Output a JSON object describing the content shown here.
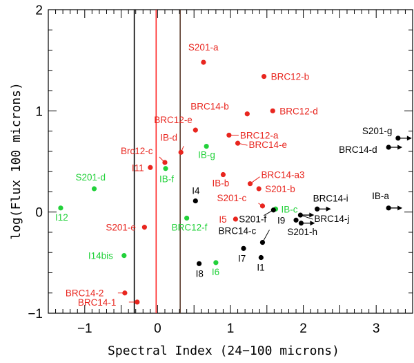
{
  "chart_data": {
    "type": "scatter",
    "title": "",
    "xlabel": "Spectral Index (24−100 microns)",
    "ylabel": "log(Flux 100 microns)",
    "xlim": [
      -1.5,
      3.5
    ],
    "ylim": [
      -1,
      2
    ],
    "grid": false,
    "x_tick_labels": [
      {
        "value": -1,
        "text": "−1"
      },
      {
        "value": 0,
        "text": "0"
      },
      {
        "value": 1,
        "text": "1"
      },
      {
        "value": 2,
        "text": "2"
      },
      {
        "value": 3,
        "text": "3"
      }
    ],
    "y_tick_labels": [
      {
        "value": -1,
        "text": "−1"
      },
      {
        "value": 0,
        "text": "0"
      },
      {
        "value": 1,
        "text": "1"
      },
      {
        "value": 2,
        "text": "2"
      }
    ],
    "x_minor_step": 0.1,
    "x_major_step": 0.5,
    "y_minor_step": 0.2,
    "y_major_step": 1,
    "vlines": [
      {
        "x": -0.32,
        "color": "#000000"
      },
      {
        "x": -0.02,
        "color": "#ff2a2a"
      },
      {
        "x": 0.31,
        "color": "#5a3a2a"
      }
    ],
    "colors": {
      "red": "#e8261f",
      "green": "#22d13a",
      "black": "#000000"
    },
    "series": [
      {
        "name": "red",
        "color": "#e8261f",
        "points": [
          {
            "label": "S201-a",
            "x": 0.63,
            "y": 1.48
          },
          {
            "label": "BRC12-b",
            "x": 1.46,
            "y": 1.34
          },
          {
            "label": "BRC14-b",
            "x": 1.23,
            "y": 0.97
          },
          {
            "label": "BRC12-d",
            "x": 1.58,
            "y": 1.0
          },
          {
            "label": "BRC12-e",
            "x": 0.52,
            "y": 0.81
          },
          {
            "label": "BRC12-a",
            "x": 0.98,
            "y": 0.76
          },
          {
            "label": "BRC14-e",
            "x": 1.1,
            "y": 0.68
          },
          {
            "label": "IB-d",
            "x": 0.32,
            "y": 0.59
          },
          {
            "label": "Brc12-c",
            "x": 0.1,
            "y": 0.49
          },
          {
            "label": "I11",
            "x": -0.1,
            "y": 0.44
          },
          {
            "label": "IB-b",
            "x": 0.9,
            "y": 0.37
          },
          {
            "label": "BRC14-a3",
            "x": 1.27,
            "y": 0.28
          },
          {
            "label": "S201-b",
            "x": 1.39,
            "y": 0.23
          },
          {
            "label": "S201-c",
            "x": 1.44,
            "y": 0.06
          },
          {
            "label": "I5",
            "x": 1.07,
            "y": -0.07
          },
          {
            "label": "S201-e",
            "x": -0.18,
            "y": -0.15
          },
          {
            "label": "BRC14-2",
            "x": -0.45,
            "y": -0.8
          },
          {
            "label": "BRC14-1",
            "x": -0.28,
            "y": -0.89
          }
        ]
      },
      {
        "name": "green",
        "color": "#22d13a",
        "points": [
          {
            "label": "IB-g",
            "x": 0.67,
            "y": 0.65
          },
          {
            "label": "IB-f",
            "x": 0.11,
            "y": 0.43
          },
          {
            "label": "S201-d",
            "x": -0.87,
            "y": 0.23
          },
          {
            "label": "I12",
            "x": -1.33,
            "y": 0.04
          },
          {
            "label": "IB-c",
            "x": 1.62,
            "y": 0.03
          },
          {
            "label": "BRC12-f",
            "x": 0.4,
            "y": -0.06
          },
          {
            "label": "I14bis",
            "x": -0.46,
            "y": -0.43
          },
          {
            "label": "I6",
            "x": 0.8,
            "y": -0.5
          }
        ]
      },
      {
        "name": "black",
        "color": "#000000",
        "points": [
          {
            "label": "I4",
            "x": 0.52,
            "y": 0.11
          },
          {
            "label": "S201-f",
            "x": 1.59,
            "y": 0.02
          },
          {
            "label": "I9",
            "x": 1.9,
            "y": -0.08
          },
          {
            "label": "BRC14-c",
            "x": 1.44,
            "y": -0.3
          },
          {
            "label": "I7",
            "x": 1.18,
            "y": -0.36
          },
          {
            "label": "I1",
            "x": 1.42,
            "y": -0.45
          },
          {
            "label": "I8",
            "x": 0.57,
            "y": -0.51
          }
        ]
      }
    ],
    "arrow_points": [
      {
        "label": "S201-g",
        "x": 3.3,
        "y": 0.73
      },
      {
        "label": "BRC14-d",
        "x": 3.17,
        "y": 0.64
      },
      {
        "label": "IB-a",
        "x": 3.17,
        "y": 0.04
      },
      {
        "label": "BRC14-i",
        "x": 2.19,
        "y": 0.03
      },
      {
        "label": "BRC14-j",
        "x": 1.96,
        "y": -0.03
      },
      {
        "label": "S201-h",
        "x": 1.97,
        "y": -0.11
      }
    ]
  }
}
